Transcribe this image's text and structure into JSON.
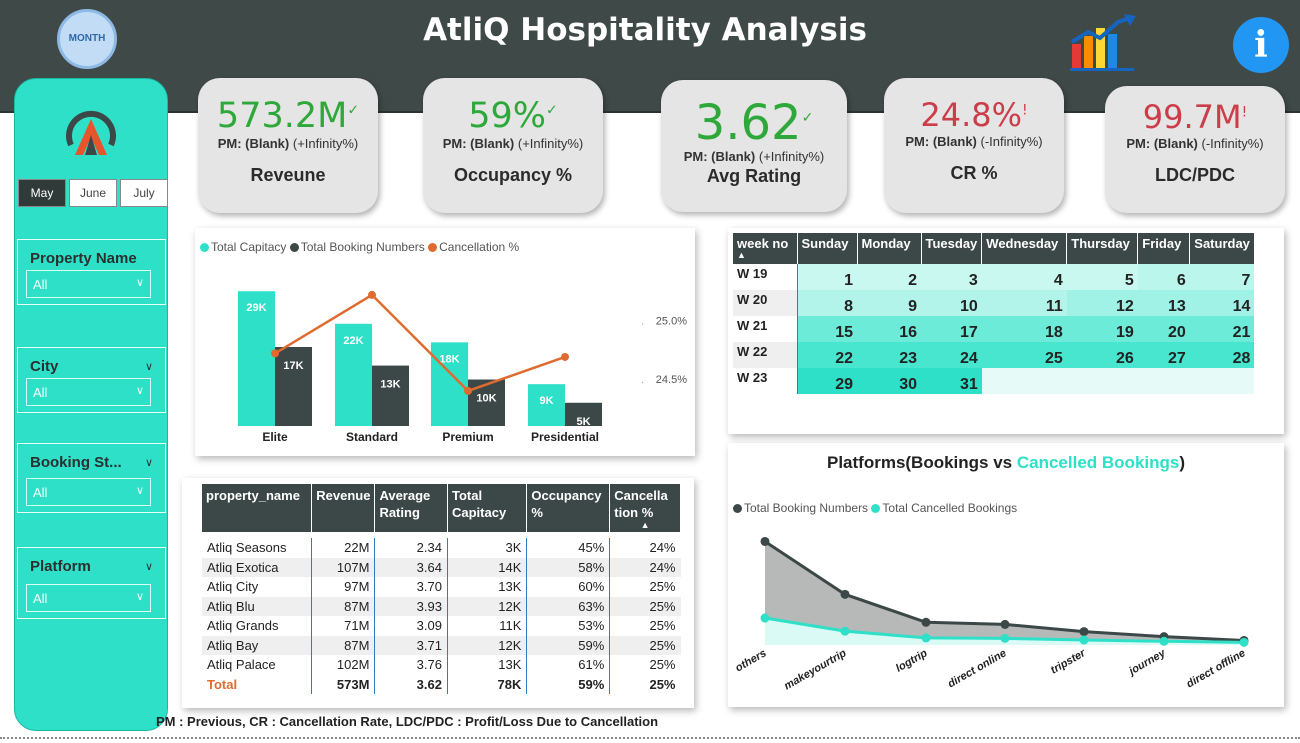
{
  "header": {
    "title": "AtliQ Hospitality Analysis",
    "month_badge": "MONTH",
    "info_label": "i"
  },
  "months": [
    {
      "label": "May",
      "selected": true
    },
    {
      "label": "June",
      "selected": false
    },
    {
      "label": "July",
      "selected": false
    }
  ],
  "slicers": [
    {
      "label": "Property Name",
      "value": "All"
    },
    {
      "label": "City",
      "value": "All"
    },
    {
      "label": "Booking St...",
      "value": "All"
    },
    {
      "label": "Platform",
      "value": "All"
    }
  ],
  "kpis": [
    {
      "value": "573.2M",
      "mark": "✓",
      "pm_label": "PM: (Blank)",
      "pm_change": "(+Infinity%)",
      "name": "Reveune",
      "status": "good"
    },
    {
      "value": "59%",
      "mark": "✓",
      "pm_label": "PM: (Blank)",
      "pm_change": "(+Infinity%)",
      "name": "Occupancy %",
      "status": "good"
    },
    {
      "value": "3.62",
      "mark": "✓",
      "pm_label": "PM: (Blank)",
      "pm_change": "(+Infinity%)",
      "name": "Avg Rating",
      "status": "good"
    },
    {
      "value": "24.8%",
      "mark": "!",
      "pm_label": "PM: (Blank)",
      "pm_change": "(-Infinity%)",
      "name": "CR %",
      "status": "bad"
    },
    {
      "value": "99.7M",
      "mark": "!",
      "pm_label": "PM: (Blank)",
      "pm_change": "(-Infinity%)",
      "name": "LDC/PDC",
      "status": "bad"
    }
  ],
  "colors": {
    "teal": "#2fe0c8",
    "dark": "#3c4847",
    "orange": "#e06b2f",
    "green": "#2ea83a",
    "red": "#cc3d4a"
  },
  "chart_data": [
    {
      "type": "bar",
      "categories": [
        "Elite",
        "Standard",
        "Premium",
        "Presidential"
      ],
      "series": [
        {
          "name": "Total Capitacy",
          "values": [
            29000,
            22000,
            18000,
            9000
          ],
          "labels": [
            "29K",
            "22K",
            "18K",
            "9K"
          ],
          "color": "#2fe0c8"
        },
        {
          "name": "Total Booking Numbers",
          "values": [
            17000,
            13000,
            10000,
            5000
          ],
          "labels": [
            "17K",
            "13K",
            "10K",
            "5K"
          ],
          "color": "#3c4847"
        },
        {
          "name": "Cancellation %",
          "type": "line",
          "axis": "right",
          "values": [
            24.72,
            25.22,
            24.4,
            24.69
          ],
          "color": "#e06b2f"
        }
      ],
      "y2_ticks": [
        "25.0%",
        "24.5%"
      ],
      "y2_tick_values": [
        25.0,
        24.5
      ],
      "ylim": [
        0,
        34000
      ],
      "y2lim": [
        24.1,
        25.45
      ],
      "legend": "top-left"
    },
    {
      "type": "area",
      "title": "Platforms(Bookings vs Cancelled Bookings)",
      "title_main": "Platforms(Bookings vs ",
      "title_accent": "Cancelled Bookings",
      "title_end": ")",
      "categories": [
        "others",
        "makeyourtrip",
        "logtrip",
        "direct online",
        "tripster",
        "journey",
        "direct offline"
      ],
      "series": [
        {
          "name": "Total Booking Numbers",
          "values": [
            24000,
            11500,
            4900,
            4400,
            2700,
            1500,
            600
          ],
          "color": "#3c4847"
        },
        {
          "name": "Total Cancelled Bookings",
          "values": [
            5900,
            2800,
            1200,
            1100,
            700,
            400,
            150
          ],
          "color": "#2fe0c8"
        }
      ],
      "ylim": [
        0,
        26000
      ],
      "legend": "top-left"
    }
  ],
  "calendar": {
    "headers": [
      "week no",
      "Sunday",
      "Monday",
      "Tuesday",
      "Wednesday",
      "Thursday",
      "Friday",
      "Saturday"
    ],
    "rows": [
      {
        "week": "W 19",
        "days": [
          "1",
          "2",
          "3",
          "4",
          "5",
          "6",
          "7"
        ]
      },
      {
        "week": "W 20",
        "days": [
          "8",
          "9",
          "10",
          "11",
          "12",
          "13",
          "14"
        ]
      },
      {
        "week": "W 21",
        "days": [
          "15",
          "16",
          "17",
          "18",
          "19",
          "20",
          "21"
        ]
      },
      {
        "week": "W 22",
        "days": [
          "22",
          "23",
          "24",
          "25",
          "26",
          "27",
          "28"
        ]
      },
      {
        "week": "W 23",
        "days": [
          "29",
          "30",
          "31",
          "",
          "",
          "",
          ""
        ]
      }
    ]
  },
  "property_table": {
    "headers": [
      "property_name",
      "Revenue",
      "Average Rating",
      "Total Capitacy",
      "Occupancy %",
      "Cancella tion %"
    ],
    "rows": [
      [
        "Atliq Seasons",
        "22M",
        "2.34",
        "3K",
        "45%",
        "24%"
      ],
      [
        "Atliq Exotica",
        "107M",
        "3.64",
        "14K",
        "58%",
        "24%"
      ],
      [
        "Atliq City",
        "97M",
        "3.70",
        "13K",
        "60%",
        "25%"
      ],
      [
        "Atliq Blu",
        "87M",
        "3.93",
        "12K",
        "63%",
        "25%"
      ],
      [
        "Atliq Grands",
        "71M",
        "3.09",
        "11K",
        "53%",
        "25%"
      ],
      [
        "Atliq Bay",
        "87M",
        "3.71",
        "12K",
        "59%",
        "25%"
      ],
      [
        "Atliq Palace",
        "102M",
        "3.76",
        "13K",
        "61%",
        "25%"
      ]
    ],
    "total": [
      "Total",
      "573M",
      "3.62",
      "78K",
      "59%",
      "25%"
    ]
  },
  "footnote": "PM : Previous, CR : Cancellation Rate, LDC/PDC  : Profit/Loss Due to Cancellation"
}
